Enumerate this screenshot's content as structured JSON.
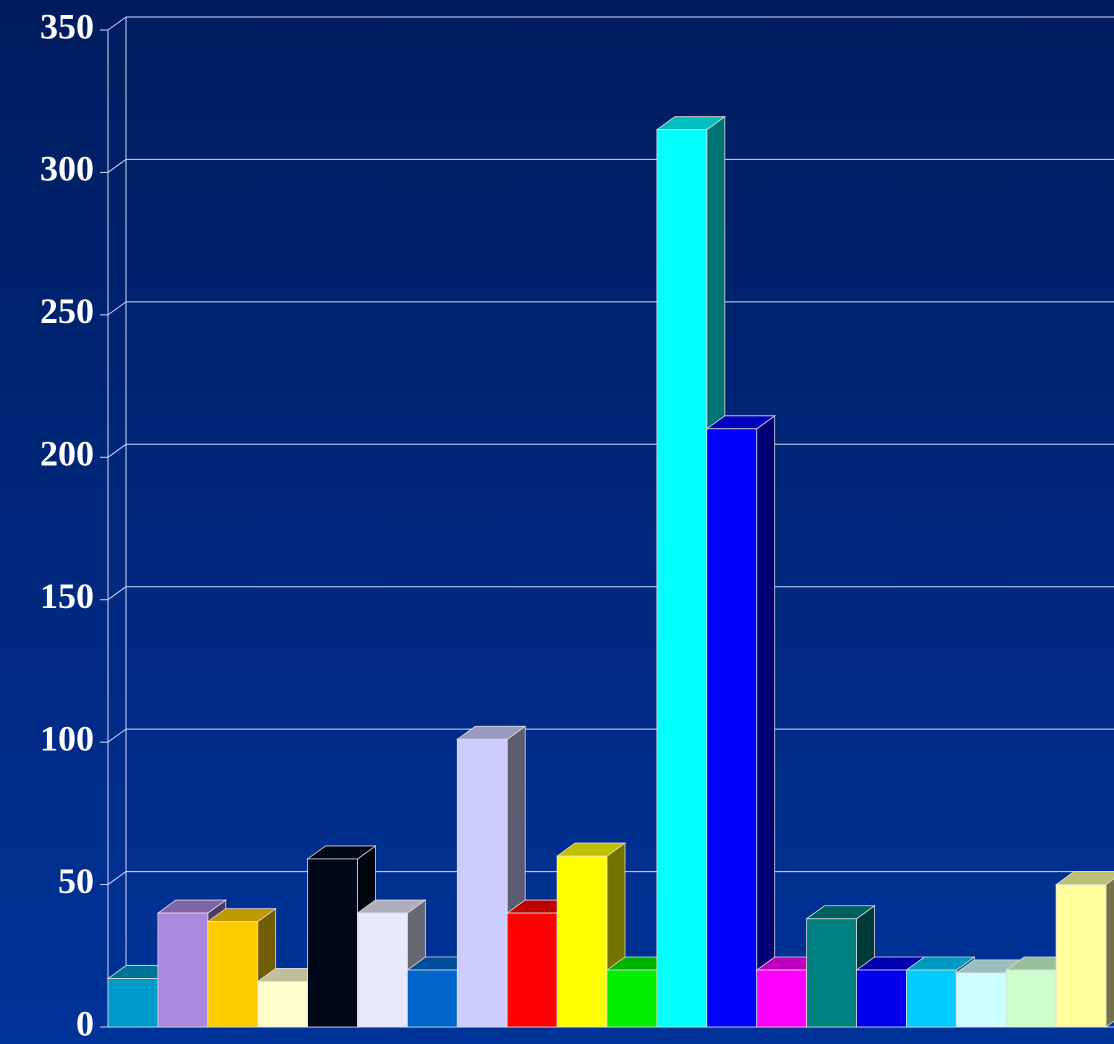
{
  "chart_data": {
    "type": "bar3d",
    "values": [
      17,
      40,
      37,
      16,
      59,
      40,
      20,
      101,
      40,
      60,
      20,
      315,
      210,
      20,
      38,
      20,
      20,
      19,
      20,
      50
    ],
    "colors": [
      "#0099cc",
      "#aa88dd",
      "#ffcc00",
      "#ffffcc",
      "#000819",
      "#e8e8ff",
      "#0066cc",
      "#ccccff",
      "#ff0000",
      "#ffff00",
      "#00ee00",
      "#00ffff",
      "#0000ff",
      "#ff00ff",
      "#008080",
      "#0000ee",
      "#00ccff",
      "#ccffff",
      "#ccffcc",
      "#ffff99"
    ],
    "ylim": [
      0,
      350
    ],
    "yticks": [
      0,
      50,
      100,
      150,
      200,
      250,
      300,
      350
    ],
    "grid": true
  }
}
